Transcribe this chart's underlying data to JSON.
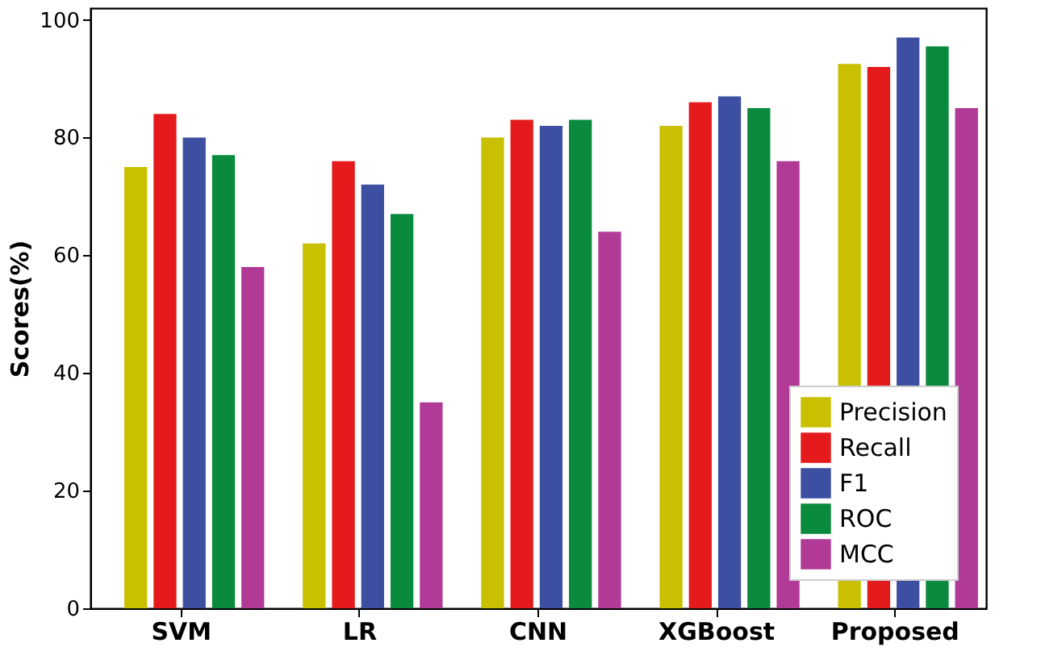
{
  "chart_data": {
    "type": "bar",
    "ylabel": "Scores(%)",
    "categories": [
      "SVM",
      "LR",
      "CNN",
      "XGBoost",
      "Proposed"
    ],
    "series": [
      {
        "name": "Precision",
        "color": "#c8c000",
        "values": [
          75,
          62,
          80,
          82,
          92.5
        ]
      },
      {
        "name": "Recall",
        "color": "#e41a1c",
        "values": [
          84,
          76,
          83,
          86,
          92
        ]
      },
      {
        "name": "F1",
        "color": "#3d4fa0",
        "values": [
          80,
          72,
          82,
          87,
          97
        ]
      },
      {
        "name": "ROC",
        "color": "#0a8a3c",
        "values": [
          77,
          67,
          83,
          85,
          95.5
        ]
      },
      {
        "name": "MCC",
        "color": "#b03a96",
        "values": [
          58,
          35,
          64,
          76,
          85
        ]
      }
    ],
    "ylim": [
      0,
      102
    ],
    "yticks": [
      0,
      20,
      40,
      60,
      80,
      100
    ],
    "grid": false,
    "legend": "bottom right"
  }
}
